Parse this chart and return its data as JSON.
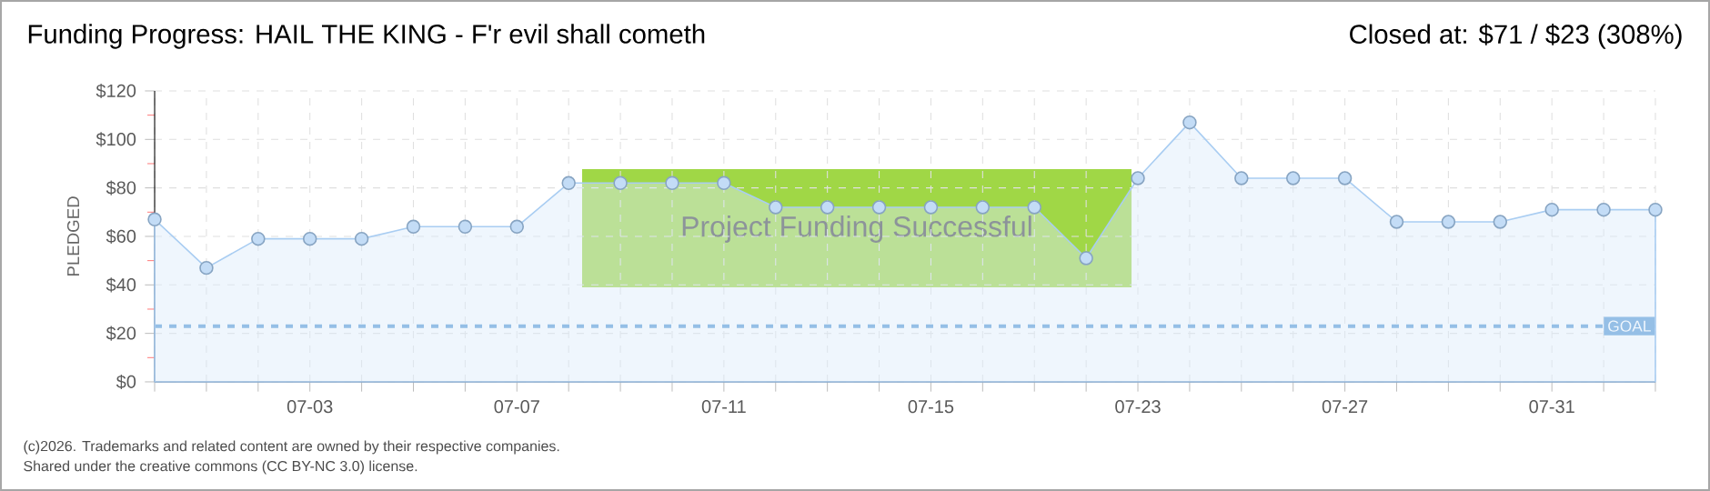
{
  "chart_data": {
    "type": "area",
    "title": "Funding Progress: HAIL THE KING - F'r evil shall cometh",
    "subtitle": "Closed at:  $71 / $23 (308%)",
    "ylabel": "PLEDGED",
    "categories": [
      null,
      null,
      null,
      "07-03",
      null,
      null,
      null,
      "07-07",
      null,
      null,
      null,
      "07-11",
      null,
      null,
      null,
      "07-15",
      null,
      null,
      null,
      "07-23",
      null,
      null,
      null,
      "07-27",
      null,
      null,
      null,
      "07-31",
      null,
      null
    ],
    "values": [
      67,
      47,
      59,
      59,
      59,
      64,
      64,
      64,
      82,
      82,
      82,
      82,
      72,
      72,
      72,
      72,
      72,
      72,
      51,
      84,
      107,
      84,
      84,
      84,
      66,
      66,
      66,
      71,
      71,
      71
    ],
    "color": "#a9cdf2",
    "ylim": [
      0,
      120
    ],
    "yticks": [
      {
        "value": 0,
        "label": "$0"
      },
      {
        "value": 20,
        "label": "$20"
      },
      {
        "value": 40,
        "label": "$40"
      },
      {
        "value": 60,
        "label": "$60"
      },
      {
        "value": 80,
        "label": "$80"
      },
      {
        "value": 100,
        "label": "$100"
      },
      {
        "value": 120,
        "label": "$120"
      }
    ],
    "grid": true,
    "marker": "circle",
    "ref_lines": [
      {
        "axis": "y",
        "value": 23,
        "label": "GOAL",
        "color": "#5b9bd5",
        "line_style": "dashed"
      }
    ],
    "annotations": [
      "Project Funding Successful",
      "(c)2026. Trademarks and related content are owned by their respective companies.",
      "Shared under the creative commons (CC BY-NC 3.0) license."
    ]
  }
}
